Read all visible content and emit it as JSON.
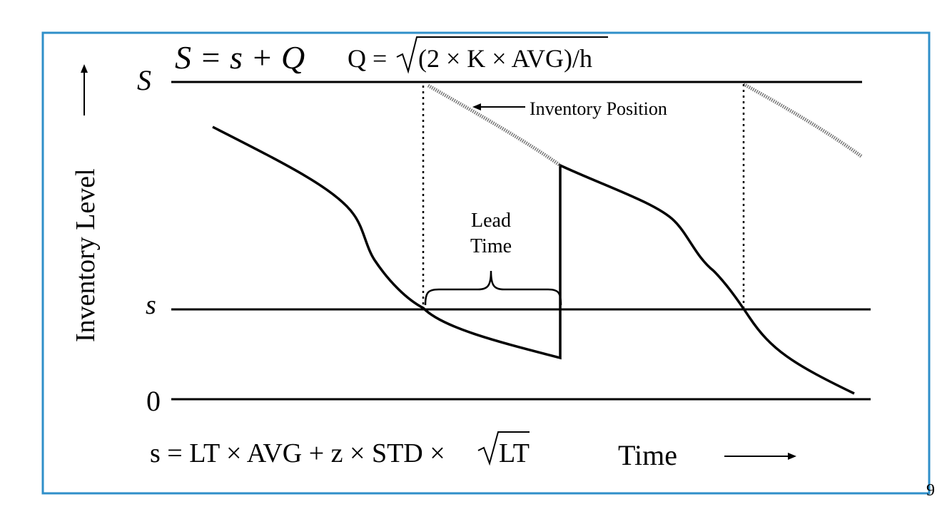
{
  "formulas": {
    "order_up_to": "S = s + Q",
    "q_lhs": "Q =",
    "q_radicand": "(2 × K × AVG)/h",
    "reorder_lhs": "s = LT × AVG + z × STD ×",
    "reorder_radicand": "LT"
  },
  "levels": {
    "upper": "S",
    "reorder": "s",
    "zero": "0"
  },
  "axes": {
    "y_label": "Inventory Level",
    "x_label": "Time"
  },
  "annotations": {
    "position": "Inventory Position",
    "lead_line1": "Lead",
    "lead_line2": "Time"
  },
  "page_number": "9"
}
